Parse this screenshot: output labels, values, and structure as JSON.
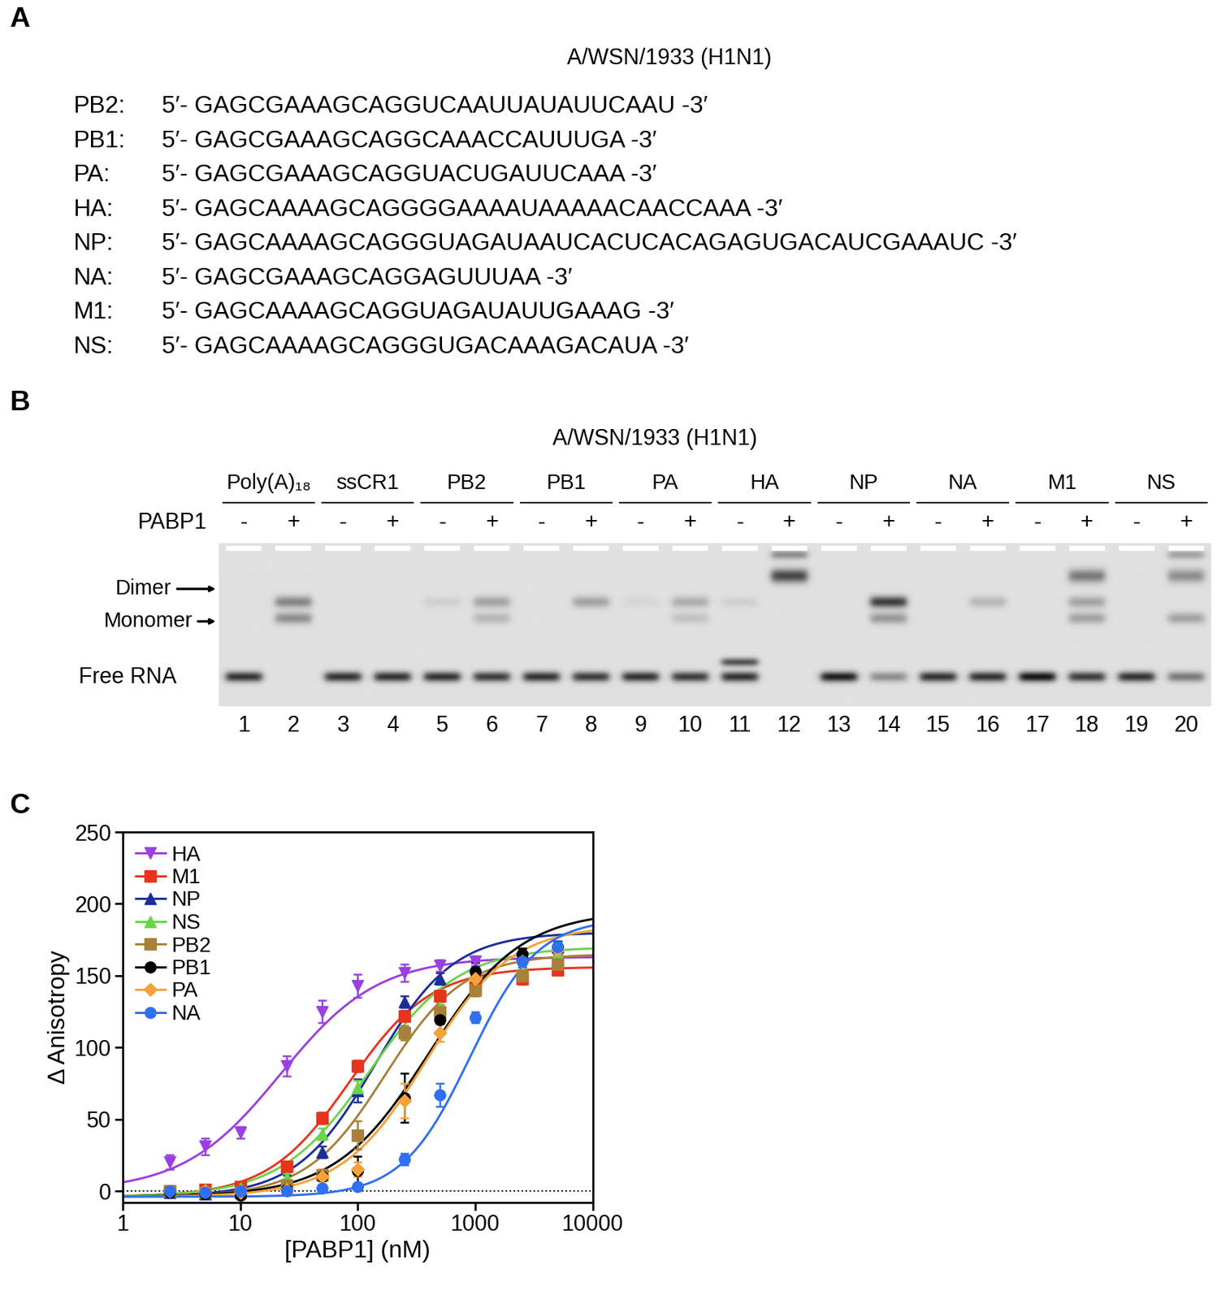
{
  "panel_labels": [
    "A",
    "B",
    "C"
  ],
  "sequences": {
    "title": "A/WSN/1933 (H1N1)",
    "rows": [
      {
        "name": "PB2:",
        "sequence": "5′- GAGCGAAAGCAGGUCAAUUAUAUUCAAU -3′"
      },
      {
        "name": "PB1:",
        "sequence": "5′- GAGCGAAAGCAGGCAAACCAUUUGA -3′"
      },
      {
        "name": "PA:",
        "sequence": "5′- GAGCGAAAGCAGGUACUGAUUCAAA -3′"
      },
      {
        "name": "HA:",
        "sequence": "5′- GAGCAAAAGCAGGGGAAAAUAAAAACAACCAAA -3′"
      },
      {
        "name": "NP:",
        "sequence": "5′- GAGCAAAAGCAGGGUAGAUAAUCACUCACAGAGUGACAUCGAAAUC -3′"
      },
      {
        "name": "NA:",
        "sequence": "5′- GAGCGAAAGCAGGAGUUUAA -3′"
      },
      {
        "name": "M1:",
        "sequence": "5′- GAGCAAAAGCAGGUAGAUAUUGAAAG -3′"
      },
      {
        "name": "NS:",
        "sequence": "5′- GAGCAAAAGCAGGGUGACAAAGACAUA -3′"
      }
    ]
  },
  "gel": {
    "title": "A/WSN/1933 (H1N1)",
    "row_label": "PABP1",
    "band_labels": {
      "dimer": "Dimer",
      "monomer": "Monomer",
      "free_rna": "Free RNA"
    },
    "groups": [
      {
        "name": "Poly(A)₁₈",
        "lanes": [
          1,
          2
        ]
      },
      {
        "name": "ssCR1",
        "lanes": [
          3,
          4
        ]
      },
      {
        "name": "PB2",
        "lanes": [
          5,
          6
        ]
      },
      {
        "name": "PB1",
        "lanes": [
          7,
          8
        ]
      },
      {
        "name": "PA",
        "lanes": [
          9,
          10
        ]
      },
      {
        "name": "HA",
        "lanes": [
          11,
          12
        ]
      },
      {
        "name": "NP",
        "lanes": [
          13,
          14
        ]
      },
      {
        "name": "NA",
        "lanes": [
          15,
          16
        ]
      },
      {
        "name": "M1",
        "lanes": [
          17,
          18
        ]
      },
      {
        "name": "NS",
        "lanes": [
          19,
          20
        ]
      }
    ],
    "lanes": [
      {
        "number": 1,
        "PABP1": "-",
        "bands": {
          "free_rna": 0.85
        }
      },
      {
        "number": 2,
        "PABP1": "+",
        "bands": {
          "dimer": 0.45,
          "monomer": 0.4
        }
      },
      {
        "number": 3,
        "PABP1": "-",
        "bands": {
          "free_rna": 0.85
        }
      },
      {
        "number": 4,
        "PABP1": "+",
        "bands": {
          "free_rna": 0.85
        }
      },
      {
        "number": 5,
        "PABP1": "-",
        "bands": {
          "free_rna": 0.85,
          "dimer": 0.08
        }
      },
      {
        "number": 6,
        "PABP1": "+",
        "bands": {
          "free_rna": 0.8,
          "dimer": 0.3,
          "monomer": 0.2
        }
      },
      {
        "number": 7,
        "PABP1": "-",
        "bands": {
          "free_rna": 0.85
        }
      },
      {
        "number": 8,
        "PABP1": "+",
        "bands": {
          "free_rna": 0.8,
          "dimer": 0.3
        }
      },
      {
        "number": 9,
        "PABP1": "-",
        "bands": {
          "free_rna": 0.85,
          "dimer": 0.05
        }
      },
      {
        "number": 10,
        "PABP1": "+",
        "bands": {
          "free_rna": 0.8,
          "dimer": 0.25,
          "monomer": 0.15
        }
      },
      {
        "number": 11,
        "PABP1": "-",
        "bands": {
          "free_rna": 0.85,
          "free_rna_upper": 0.7,
          "dimer": 0.08
        }
      },
      {
        "number": 12,
        "PABP1": "+",
        "bands": {
          "well": 0.4,
          "complex": 0.75
        }
      },
      {
        "number": 13,
        "PABP1": "-",
        "bands": {
          "free_rna": 0.95
        }
      },
      {
        "number": 14,
        "PABP1": "+",
        "bands": {
          "free_rna": 0.4,
          "dimer": 0.8,
          "monomer": 0.35
        }
      },
      {
        "number": 15,
        "PABP1": "-",
        "bands": {
          "free_rna": 0.85
        }
      },
      {
        "number": 16,
        "PABP1": "+",
        "bands": {
          "free_rna": 0.85,
          "dimer": 0.2
        }
      },
      {
        "number": 17,
        "PABP1": "-",
        "bands": {
          "free_rna": 1.0
        }
      },
      {
        "number": 18,
        "PABP1": "+",
        "bands": {
          "free_rna": 0.8,
          "complex": 0.5,
          "dimer": 0.3,
          "monomer": 0.3
        }
      },
      {
        "number": 19,
        "PABP1": "-",
        "bands": {
          "free_rna": 0.85
        }
      },
      {
        "number": 20,
        "PABP1": "+",
        "bands": {
          "free_rna": 0.5,
          "well": 0.3,
          "complex": 0.4,
          "monomer": 0.3
        }
      }
    ]
  },
  "chart_data": {
    "type": "line",
    "x_label": "[PABP1] (nM)",
    "y_label": "Δ Anisotropy",
    "log": "x",
    "legend": "upper left",
    "xlim": [
      1,
      10000
    ],
    "xticks": [
      1,
      10,
      100,
      1000,
      10000
    ],
    "ylim": [
      -8,
      250
    ],
    "yticks": [
      0,
      50,
      100,
      150,
      200,
      250
    ],
    "x": [
      2.5,
      5,
      10,
      25,
      50,
      100,
      250,
      500,
      1000,
      2500,
      5000
    ],
    "series": [
      {
        "name": "HA",
        "color": "#9b3fe0",
        "marker": "triangle_down",
        "values": [
          20,
          31,
          41,
          87,
          125,
          143,
          152,
          157,
          160,
          162,
          163
        ],
        "errors": [
          5,
          6,
          4,
          7,
          8,
          8,
          6,
          4,
          3,
          3,
          3
        ],
        "fit": {
          "bottom": 0,
          "top": 163,
          "ec50": 22,
          "hill": 1.05
        }
      },
      {
        "name": "M1",
        "color": "#e8341c",
        "marker": "square",
        "values": [
          0,
          1,
          3,
          17,
          51,
          87,
          122,
          136,
          142,
          148,
          154
        ],
        "errors": [
          2,
          2,
          2,
          2,
          4,
          4,
          4,
          4,
          4,
          4,
          3
        ],
        "fit": {
          "bottom": -4,
          "top": 156,
          "ec50": 85,
          "hill": 1.25
        }
      },
      {
        "name": "NP",
        "color": "#1a2f9a",
        "marker": "triangle_up",
        "values": [
          -1,
          -2,
          -1,
          8,
          27,
          70,
          132,
          148,
          152,
          165,
          170
        ],
        "errors": [
          2,
          2,
          2,
          3,
          4,
          8,
          4,
          4,
          4,
          4,
          4
        ],
        "fit": {
          "bottom": -4,
          "top": 180,
          "ec50": 140,
          "hill": 1.3
        }
      },
      {
        "name": "NS",
        "color": "#6cd44a",
        "marker": "triangle_up",
        "values": [
          0,
          1,
          2,
          9,
          40,
          72,
          110,
          128,
          140,
          152,
          165
        ],
        "errors": [
          2,
          2,
          2,
          3,
          4,
          5,
          4,
          4,
          4,
          4,
          4
        ],
        "fit": {
          "bottom": -4,
          "top": 170,
          "ec50": 125,
          "hill": 1.15
        }
      },
      {
        "name": "PB2",
        "color": "#a8803a",
        "marker": "square",
        "values": [
          0,
          -1,
          -1,
          4,
          11,
          39,
          110,
          125,
          140,
          150,
          158
        ],
        "errors": [
          2,
          2,
          2,
          2,
          4,
          10,
          5,
          5,
          4,
          4,
          4
        ],
        "fit": {
          "bottom": -4,
          "top": 165,
          "ec50": 170,
          "hill": 1.3
        }
      },
      {
        "name": "PB1",
        "color": "#000000",
        "marker": "circle",
        "values": [
          -1,
          -2,
          -3,
          1,
          10,
          14,
          65,
          119,
          153,
          165,
          170
        ],
        "errors": [
          2,
          2,
          2,
          2,
          3,
          10,
          17,
          8,
          6,
          4,
          4
        ],
        "fit": {
          "bottom": -4,
          "top": 195,
          "ec50": 400,
          "hill": 1.1
        }
      },
      {
        "name": "PA",
        "color": "#f5a23a",
        "marker": "diamond",
        "values": [
          0,
          0,
          -1,
          1,
          10,
          15,
          63,
          110,
          148,
          160,
          168
        ],
        "errors": [
          2,
          2,
          2,
          2,
          3,
          5,
          12,
          6,
          4,
          4,
          4
        ],
        "fit": {
          "bottom": -4,
          "top": 185,
          "ec50": 380,
          "hill": 1.2
        }
      },
      {
        "name": "NA",
        "color": "#2f6ff0",
        "marker": "circle",
        "values": [
          0,
          -1,
          0,
          0,
          2,
          3,
          22,
          67,
          121,
          160,
          170
        ],
        "errors": [
          2,
          2,
          2,
          2,
          2,
          2,
          4,
          8,
          4,
          4,
          4
        ],
        "fit": {
          "bottom": -4,
          "top": 190,
          "ec50": 900,
          "hill": 1.5
        }
      }
    ]
  }
}
